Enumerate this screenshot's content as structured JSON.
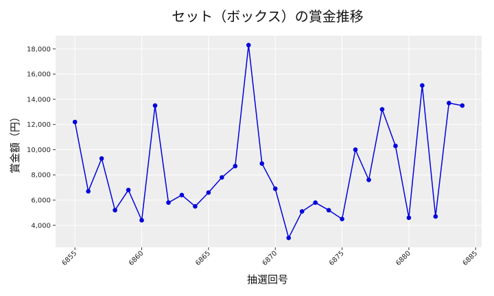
{
  "chart_data": {
    "type": "line",
    "title": "セット（ボックス）の賞金推移",
    "xlabel": "抽選回号",
    "ylabel": "賞金額（円）",
    "xlim": [
      6853.55,
      6885.45
    ],
    "ylim": [
      2250,
      19050
    ],
    "x_ticks": [
      6855,
      6860,
      6865,
      6870,
      6875,
      6880,
      6885
    ],
    "x_tick_labels": [
      "6855",
      "6860",
      "6865",
      "6870",
      "6875",
      "6880",
      "6885"
    ],
    "y_ticks": [
      4000,
      6000,
      8000,
      10000,
      12000,
      14000,
      16000,
      18000
    ],
    "y_tick_labels": [
      "4,000",
      "6,000",
      "8,000",
      "10,000",
      "12,000",
      "14,000",
      "16,000",
      "18,000"
    ],
    "grid": true,
    "series": [
      {
        "color": "#0000dd",
        "x": [
          6855,
          6856,
          6857,
          6858,
          6859,
          6860,
          6861,
          6862,
          6863,
          6864,
          6865,
          6866,
          6867,
          6868,
          6869,
          6870,
          6871,
          6872,
          6873,
          6874,
          6875,
          6876,
          6877,
          6878,
          6879,
          6880,
          6881,
          6882,
          6883,
          6884
        ],
        "values": [
          12200,
          6700,
          9300,
          5200,
          6800,
          4400,
          13500,
          5800,
          6400,
          5500,
          6600,
          7800,
          8700,
          18300,
          8900,
          6900,
          3000,
          5100,
          5800,
          5200,
          4500,
          10000,
          7600,
          13200,
          10300,
          4600,
          15100,
          4700,
          13700,
          13500
        ]
      }
    ]
  }
}
